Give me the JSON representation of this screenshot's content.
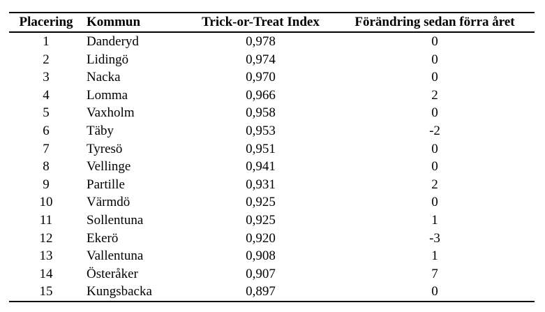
{
  "colors": {
    "text": "#000000",
    "background": "#ffffff",
    "rule": "#000000"
  },
  "table": {
    "columns": [
      {
        "key": "placering",
        "label": "Placering",
        "align": "center"
      },
      {
        "key": "kommun",
        "label": "Kommun",
        "align": "left"
      },
      {
        "key": "index",
        "label": "Trick-or-Treat Index",
        "align": "center"
      },
      {
        "key": "change",
        "label": "Förändring sedan förra året",
        "align": "center"
      }
    ],
    "rows": [
      [
        "1",
        "Danderyd",
        "0,978",
        "0"
      ],
      [
        "2",
        "Lidingö",
        "0,974",
        "0"
      ],
      [
        "3",
        "Nacka",
        "0,970",
        "0"
      ],
      [
        "4",
        "Lomma",
        "0,966",
        "2"
      ],
      [
        "5",
        "Vaxholm",
        "0,958",
        "0"
      ],
      [
        "6",
        "Täby",
        "0,953",
        "-2"
      ],
      [
        "7",
        "Tyresö",
        "0,951",
        "0"
      ],
      [
        "8",
        "Vellinge",
        "0,941",
        "0"
      ],
      [
        "9",
        "Partille",
        "0,931",
        "2"
      ],
      [
        "10",
        "Värmdö",
        "0,925",
        "0"
      ],
      [
        "11",
        "Sollentuna",
        "0,925",
        "1"
      ],
      [
        "12",
        "Ekerö",
        "0,920",
        "-3"
      ],
      [
        "13",
        "Vallentuna",
        "0,908",
        "1"
      ],
      [
        "14",
        "Österåker",
        "0,907",
        "7"
      ],
      [
        "15",
        "Kungsbacka",
        "0,897",
        "0"
      ]
    ]
  }
}
